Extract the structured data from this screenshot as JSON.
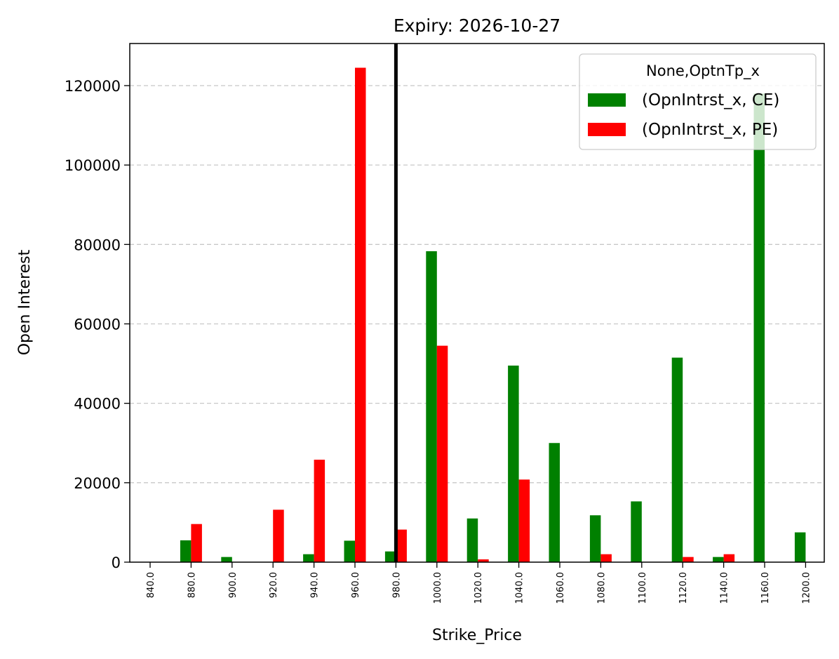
{
  "chart_data": {
    "type": "bar",
    "title": "Expiry: 2026-10-27",
    "xlabel": "Strike_Price",
    "ylabel": "Open Interest",
    "categories": [
      "840.0",
      "880.0",
      "900.0",
      "920.0",
      "940.0",
      "960.0",
      "980.0",
      "1000.0",
      "1020.0",
      "1040.0",
      "1060.0",
      "1080.0",
      "1100.0",
      "1120.0",
      "1140.0",
      "1160.0",
      "1200.0"
    ],
    "series": [
      {
        "name": "(OpnIntrst_x, CE)",
        "color": "#008000",
        "values": [
          0,
          5500,
          1300,
          0,
          2000,
          5400,
          2700,
          78300,
          11000,
          49500,
          30000,
          11800,
          15300,
          51500,
          1300,
          118000,
          7500
        ]
      },
      {
        "name": "(OpnIntrst_x, PE)",
        "color": "#ff0000",
        "values": [
          0,
          9600,
          0,
          13200,
          25800,
          124500,
          8200,
          54500,
          700,
          20800,
          0,
          2000,
          0,
          1300,
          2000,
          0,
          0
        ]
      }
    ],
    "ylim": [
      0,
      130600
    ],
    "yticks": [
      0,
      20000,
      40000,
      60000,
      80000,
      100000,
      120000
    ],
    "ytick_labels": [
      "0",
      "20000",
      "40000",
      "60000",
      "80000",
      "100000",
      "120000"
    ],
    "grid": "y-dashed",
    "legend": {
      "title": "None,OptnTp_x",
      "placement": "top-right"
    },
    "vline": {
      "x_category": "980.0",
      "color": "#000000"
    }
  }
}
